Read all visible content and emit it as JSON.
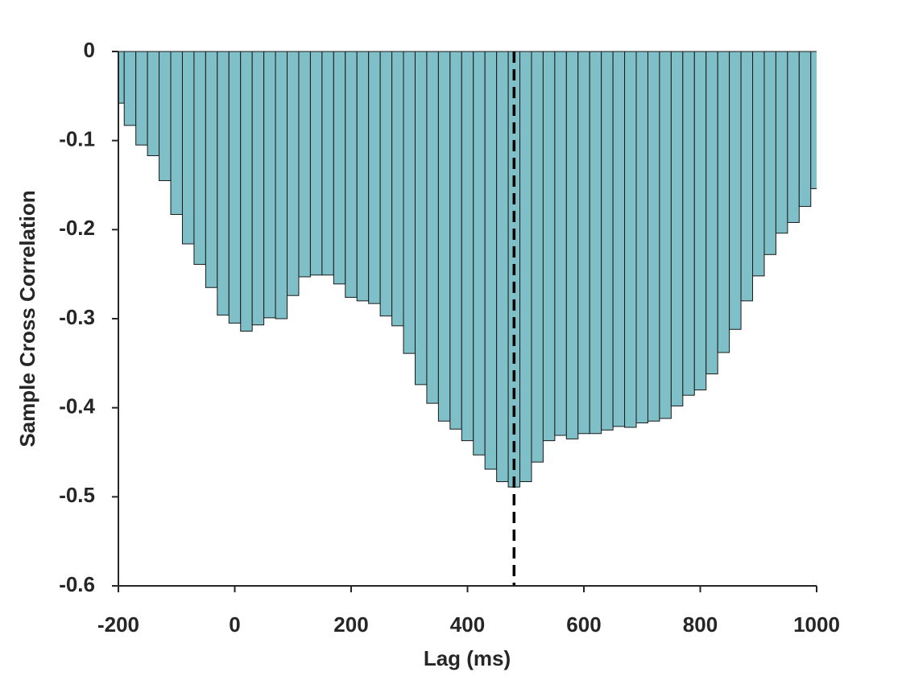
{
  "chart_data": {
    "type": "bar",
    "xlabel": "Lag (ms)",
    "ylabel": "Sample Cross Correlation",
    "x": [
      -200,
      -180,
      -160,
      -140,
      -120,
      -100,
      -80,
      -60,
      -40,
      -20,
      0,
      20,
      40,
      60,
      80,
      100,
      120,
      140,
      160,
      180,
      200,
      220,
      240,
      260,
      280,
      300,
      320,
      340,
      360,
      380,
      400,
      420,
      440,
      460,
      480,
      500,
      520,
      540,
      560,
      580,
      600,
      620,
      640,
      660,
      680,
      700,
      720,
      740,
      760,
      780,
      800,
      820,
      840,
      860,
      880,
      900,
      920,
      940,
      960,
      980,
      1000
    ],
    "values": [
      -0.058,
      -0.083,
      -0.105,
      -0.117,
      -0.145,
      -0.183,
      -0.216,
      -0.239,
      -0.265,
      -0.296,
      -0.305,
      -0.314,
      -0.307,
      -0.299,
      -0.3,
      -0.274,
      -0.253,
      -0.251,
      -0.251,
      -0.261,
      -0.276,
      -0.28,
      -0.283,
      -0.297,
      -0.308,
      -0.339,
      -0.374,
      -0.395,
      -0.415,
      -0.424,
      -0.437,
      -0.453,
      -0.469,
      -0.483,
      -0.489,
      -0.483,
      -0.461,
      -0.437,
      -0.431,
      -0.435,
      -0.429,
      -0.429,
      -0.425,
      -0.421,
      -0.422,
      -0.417,
      -0.415,
      -0.412,
      -0.398,
      -0.386,
      -0.38,
      -0.362,
      -0.338,
      -0.312,
      -0.28,
      -0.252,
      -0.228,
      -0.204,
      -0.192,
      -0.174,
      -0.154
    ],
    "color": "#7fbfc8",
    "xlim": [
      -200,
      1000
    ],
    "xticks": [
      -200,
      0,
      200,
      400,
      600,
      800,
      1000
    ],
    "ylim": [
      -0.6,
      0
    ],
    "yticks": [
      -0.6,
      -0.5,
      -0.4,
      -0.3,
      -0.2,
      -0.1,
      0
    ],
    "vline_x": 480
  }
}
